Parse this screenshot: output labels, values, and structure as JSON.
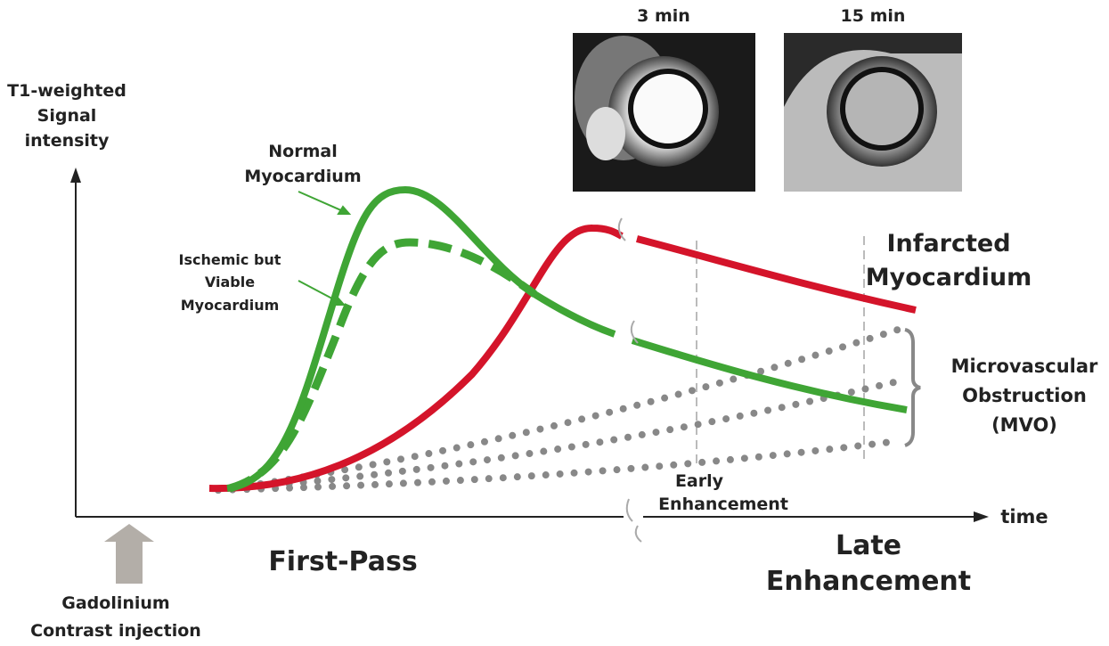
{
  "images": [
    {
      "label": "3 min"
    },
    {
      "label": "15 min"
    }
  ],
  "y_axis_label": [
    "T1-weighted",
    "Signal",
    "intensity"
  ],
  "x_axis_label": "time",
  "curves": {
    "normal": [
      "Normal",
      "Myocardium"
    ],
    "ischemic": [
      "Ischemic but",
      "Viable",
      "Myocardium"
    ],
    "infarcted": [
      "Infarcted",
      "Myocardium"
    ],
    "mvo": [
      "Microvascular",
      "Obstruction",
      "(MVO)"
    ]
  },
  "early_enhancement": [
    "Early",
    "Enhancement"
  ],
  "phases": {
    "first_pass": "First-Pass",
    "late_enhancement": [
      "Late",
      "Enhancement"
    ]
  },
  "injection": [
    "Gadolinium",
    "Contrast injection"
  ]
}
